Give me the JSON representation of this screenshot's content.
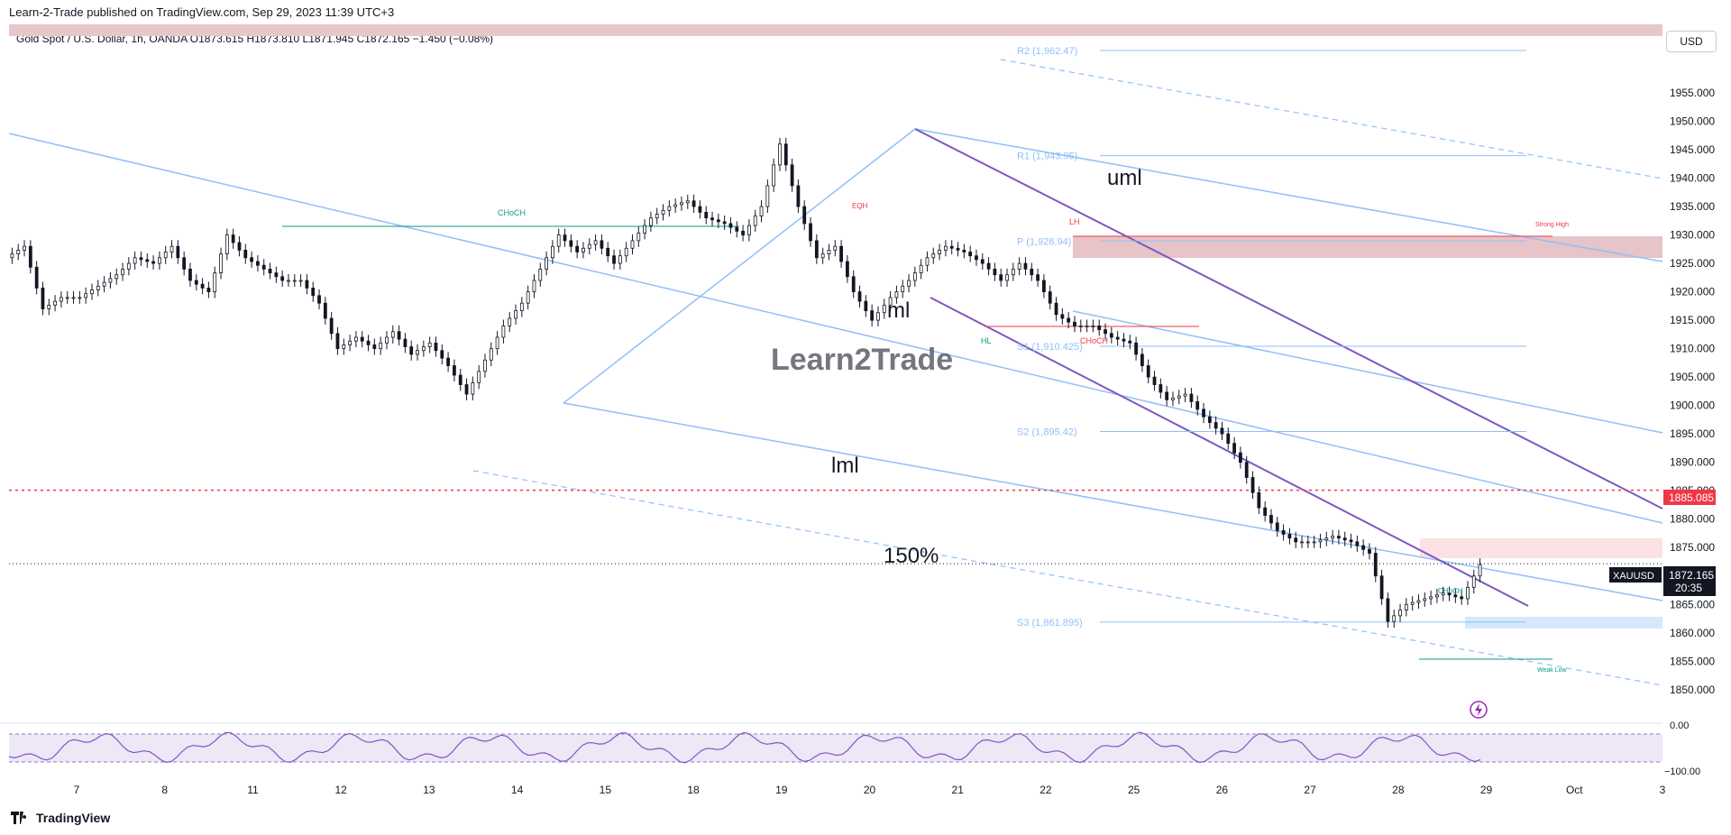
{
  "header": {
    "published_by": "Learn-2-Trade published on TradingView.com, Sep 29, 2023 11:39 UTC+3",
    "symbol_line": "Gold Spot / U.S. Dollar, 1h, OANDA  O1873.615  H1873.810  L1871.945  C1872.165  −1.450 (−0.08%)"
  },
  "currency_button": "USD",
  "footer": {
    "brand": "TradingView",
    "icon": "tradingview-logo-icon"
  },
  "watermark": {
    "text": "Learn2Trade"
  },
  "colors": {
    "bull": "#131722",
    "bear": "#131722",
    "channel_blue": "#90bff9",
    "channel_purple": "#7e57c2",
    "supply_zone": "#e6c4c8",
    "demand_zone": "#d6e8fb",
    "red_line": "#f23645",
    "rsi": "#7e57c2"
  },
  "chart_data": {
    "type": "candlestick",
    "title": "Gold Spot / U.S. Dollar, 1h, OANDA",
    "ylim": [
      1846,
      1965
    ],
    "y_ticks": [
      1850,
      1855,
      1860,
      1865,
      1870,
      1875,
      1880,
      1885,
      1890,
      1895,
      1900,
      1905,
      1910,
      1915,
      1920,
      1925,
      1930,
      1935,
      1940,
      1945,
      1950,
      1955
    ],
    "x_ticks": [
      "7",
      "8",
      "11",
      "12",
      "13",
      "14",
      "15",
      "18",
      "19",
      "20",
      "21",
      "22",
      "25",
      "26",
      "27",
      "28",
      "29",
      "Oct",
      "3"
    ],
    "price_labels": [
      {
        "label": "1885.085",
        "value": 1885.085,
        "color": "#f23645"
      },
      {
        "label": "XAUUSD",
        "value": 1872.165,
        "sub": "20:35",
        "price": "1872.165",
        "color": "#131722"
      }
    ],
    "pivots": [
      {
        "label": "R2 (1,962.47)",
        "value": 1962.47
      },
      {
        "label": "R1 (1,943.95)",
        "value": 1943.95
      },
      {
        "label": "P (1,928.94)",
        "value": 1928.94
      },
      {
        "label": "S1 (1,910.425)",
        "value": 1910.425
      },
      {
        "label": "S2 (1,895.42)",
        "value": 1895.42
      },
      {
        "label": "S3 (1,861.895)",
        "value": 1861.895
      }
    ],
    "annotations": {
      "uml": "uml",
      "ml": "ml",
      "lml": "lml",
      "pct": "150%",
      "choch1": "CHoCH",
      "choch2": "CHoCH",
      "choch3": "CHoCH",
      "eqh": "EQH",
      "lh": "LH",
      "hl": "HL",
      "strong_high": "Strong High",
      "weak_low": "Weak Low"
    },
    "series": [
      {
        "name": "XAUUSD",
        "points": [
          [
            0,
            1926
          ],
          [
            3,
            1928
          ],
          [
            6,
            1917
          ],
          [
            9,
            1919
          ],
          [
            12,
            1919
          ],
          [
            15,
            1921
          ],
          [
            18,
            1923
          ],
          [
            21,
            1926
          ],
          [
            24,
            1925
          ],
          [
            27,
            1928
          ],
          [
            30,
            1922
          ],
          [
            33,
            1920
          ],
          [
            36,
            1930
          ],
          [
            39,
            1926
          ],
          [
            42,
            1924
          ],
          [
            45,
            1922
          ],
          [
            48,
            1922
          ],
          [
            51,
            1918
          ],
          [
            54,
            1910
          ],
          [
            57,
            1912
          ],
          [
            60,
            1910
          ],
          [
            63,
            1913
          ],
          [
            66,
            1909
          ],
          [
            69,
            1911
          ],
          [
            72,
            1907
          ],
          [
            75,
            1902
          ],
          [
            78,
            1908
          ],
          [
            81,
            1914
          ],
          [
            84,
            1918
          ],
          [
            87,
            1924
          ],
          [
            90,
            1930
          ],
          [
            93,
            1927
          ],
          [
            96,
            1929
          ],
          [
            99,
            1925
          ],
          [
            102,
            1929
          ],
          [
            105,
            1933
          ],
          [
            108,
            1935
          ],
          [
            111,
            1936
          ],
          [
            114,
            1933
          ],
          [
            117,
            1932
          ],
          [
            120,
            1930
          ],
          [
            123,
            1935
          ],
          [
            126,
            1946
          ],
          [
            129,
            1935
          ],
          [
            132,
            1926
          ],
          [
            135,
            1928
          ],
          [
            138,
            1920
          ],
          [
            141,
            1915
          ],
          [
            144,
            1919
          ],
          [
            147,
            1922
          ],
          [
            150,
            1926
          ],
          [
            153,
            1928
          ],
          [
            156,
            1927
          ],
          [
            159,
            1925
          ],
          [
            162,
            1922
          ],
          [
            165,
            1925
          ],
          [
            168,
            1922
          ],
          [
            171,
            1916
          ],
          [
            174,
            1914
          ],
          [
            177,
            1914
          ],
          [
            180,
            1912
          ],
          [
            183,
            1911
          ],
          [
            186,
            1905
          ],
          [
            189,
            1901
          ],
          [
            192,
            1902
          ],
          [
            195,
            1898
          ],
          [
            198,
            1895
          ],
          [
            201,
            1890
          ],
          [
            204,
            1882
          ],
          [
            207,
            1878
          ],
          [
            210,
            1876
          ],
          [
            213,
            1876
          ],
          [
            216,
            1877
          ],
          [
            219,
            1876
          ],
          [
            222,
            1874
          ],
          [
            225,
            1862
          ],
          [
            228,
            1865
          ],
          [
            231,
            1866
          ],
          [
            234,
            1867
          ],
          [
            237,
            1866
          ],
          [
            240,
            1872
          ]
        ]
      }
    ],
    "rsi": {
      "ylim": [
        -100,
        0
      ],
      "ticks": [
        "0.00",
        "−100.00"
      ]
    }
  }
}
